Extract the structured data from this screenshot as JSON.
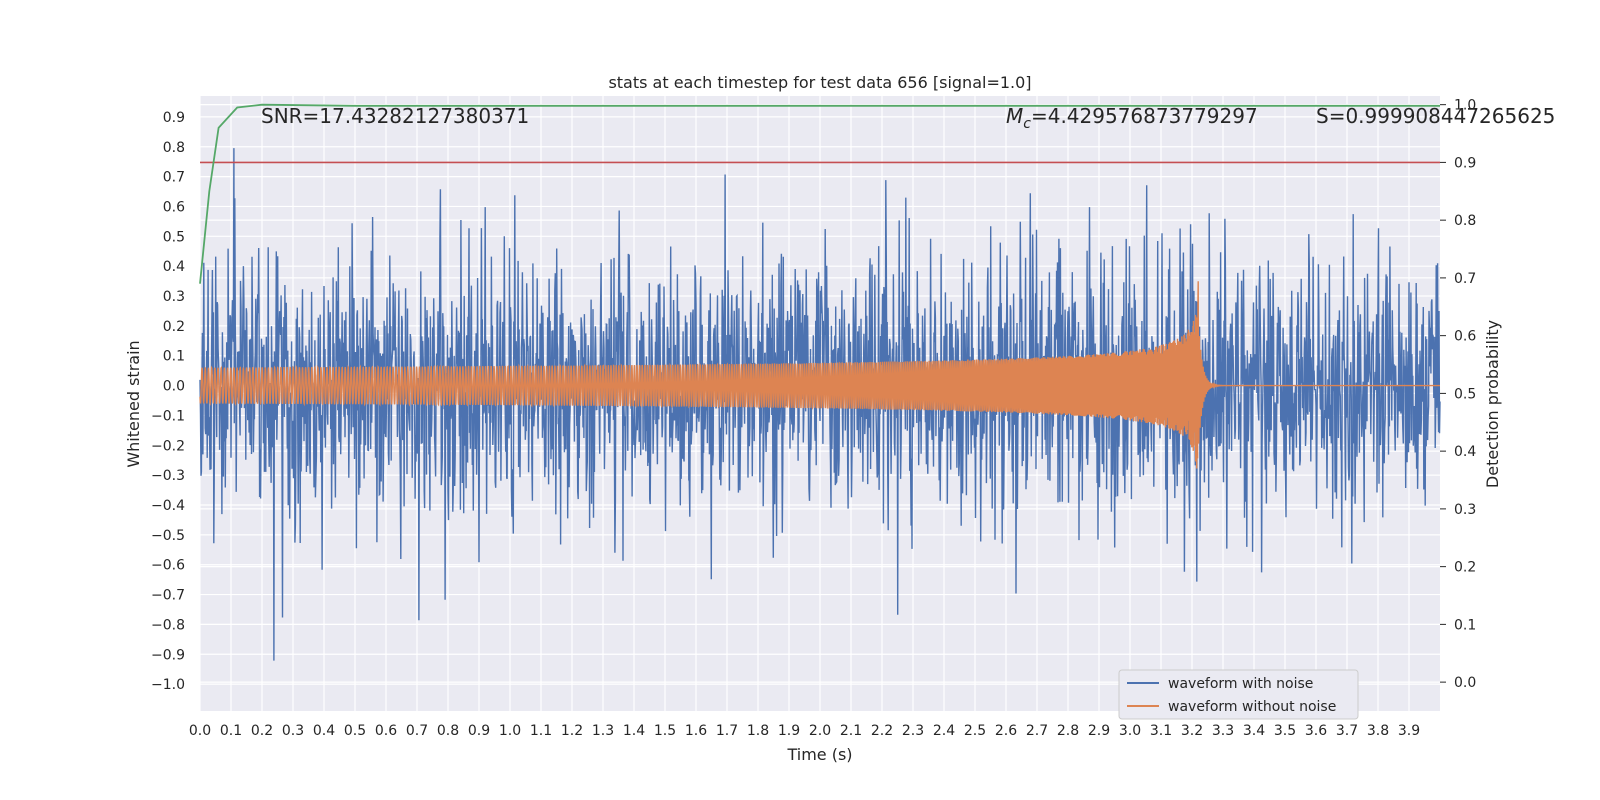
{
  "chart_data": {
    "type": "line",
    "title": "stats at each timestep for test data 656 [signal=1.0]",
    "xlabel": "Time (s)",
    "ylabel": "Whitened strain",
    "ylabel_right": "Detection probability",
    "xlim": [
      0.0,
      4.0
    ],
    "ylim": [
      -1.09,
      0.97
    ],
    "ylim_right": [
      -0.05,
      1.015
    ],
    "x_ticks": [
      "0.0",
      "0.1",
      "0.2",
      "0.3",
      "0.4",
      "0.5",
      "0.6",
      "0.7",
      "0.8",
      "0.9",
      "1.0",
      "1.1",
      "1.2",
      "1.3",
      "1.4",
      "1.5",
      "1.6",
      "1.7",
      "1.8",
      "1.9",
      "2.0",
      "2.1",
      "2.2",
      "2.3",
      "2.4",
      "2.5",
      "2.6",
      "2.7",
      "2.8",
      "2.9",
      "3.0",
      "3.1",
      "3.2",
      "3.3",
      "3.4",
      "3.5",
      "3.6",
      "3.7",
      "3.8",
      "3.9"
    ],
    "y_ticks": [
      "0.9",
      "0.8",
      "0.7",
      "0.6",
      "0.5",
      "0.4",
      "0.3",
      "0.2",
      "0.1",
      "0.0",
      "−0.1",
      "−0.2",
      "−0.3",
      "−0.4",
      "−0.5",
      "−0.6",
      "−0.7",
      "−0.8",
      "−0.9",
      "−1.0"
    ],
    "y_ticks_right": [
      "1.0",
      "0.9",
      "0.8",
      "0.7",
      "0.6",
      "0.5",
      "0.4",
      "0.3",
      "0.2",
      "0.1",
      "0.0"
    ],
    "annotations": {
      "snr": "SNR=17.43282127380371",
      "mc_prefix": "M",
      "mc_sub": "c",
      "mc_value": "=4.429576873779297",
      "s": "S=0.999908447265625"
    },
    "legend": {
      "position": "lower right",
      "entries": [
        "waveform with noise",
        "waveform without noise"
      ]
    },
    "series": [
      {
        "name": "waveform with noise",
        "color": "#4c72b0",
        "description_points": "dense noisy whitened strain, mostly within ±0.5, peaks near 0.88 at t≈3.22 and −0.98 at t≈3.08"
      },
      {
        "name": "waveform without noise",
        "color": "#dd8452",
        "merger_time": 3.22,
        "peak_amplitude": 0.38,
        "initial_amplitude": 0.06
      },
      {
        "name": "detection probability",
        "axis": "right",
        "color": "#55a868",
        "x": [
          0.0,
          0.03,
          0.06,
          0.12,
          0.2,
          0.5,
          1.0,
          2.0,
          3.0,
          4.0
        ],
        "y": [
          0.69,
          0.85,
          0.96,
          0.995,
          1.0,
          0.998,
          0.998,
          0.998,
          0.998,
          0.998
        ]
      },
      {
        "name": "threshold",
        "axis": "right",
        "color": "#c44e52",
        "y": 0.9
      }
    ],
    "grid": true
  }
}
